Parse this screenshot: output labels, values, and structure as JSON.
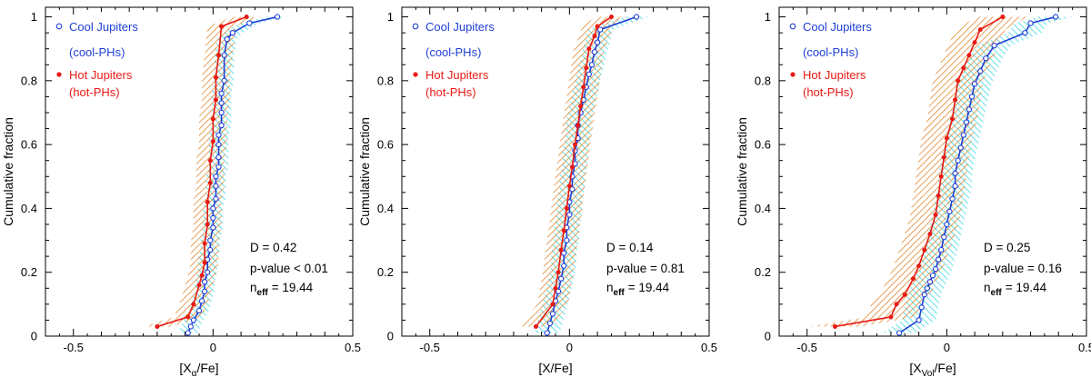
{
  "chart_data": [
    {
      "type": "line",
      "xlabel": "[X_α/Fe]",
      "xlabel_main": "[X",
      "xlabel_sub": "α",
      "xlabel_tail": "/Fe]",
      "ylabel": "Cumulative fraction",
      "xlim": [
        -0.6,
        0.5
      ],
      "ylim": [
        0,
        1.03
      ],
      "xticks": [
        -0.5,
        0,
        0.5
      ],
      "xtick_labels": [
        "-0.5",
        "0",
        "0.5"
      ],
      "yticks": [
        0,
        0.2,
        0.4,
        0.6,
        0.8,
        1
      ],
      "ytick_labels": [
        "0",
        "0.2",
        "0.4",
        "0.6",
        "0.8",
        "1"
      ],
      "legend": [
        "Cool Jupiters",
        "(cool-PHs)",
        "Hot Jupiters",
        "(hot-PHs)"
      ],
      "stats": {
        "d": "D = 0.42",
        "p": "p-value < 0.01",
        "neff_prefix": "n",
        "neff_sub": "eff",
        "neff_value": "= 19.44"
      },
      "series": [
        {
          "name": "Cool Jupiters (cool-PHs)",
          "color": "#1f3fd6",
          "band_color": "#2ad4e0",
          "marker": "open-circle",
          "band_width": 0.035,
          "x": [
            -0.09,
            -0.08,
            -0.07,
            -0.05,
            -0.04,
            -0.03,
            -0.03,
            -0.02,
            -0.02,
            -0.01,
            -0.01,
            0.0,
            0.0,
            0.0,
            0.01,
            0.01,
            0.01,
            0.02,
            0.02,
            0.02,
            0.02,
            0.03,
            0.03,
            0.03,
            0.03,
            0.04,
            0.04,
            0.05,
            0.07,
            0.13,
            0.23
          ],
          "y": [
            0.01,
            0.03,
            0.05,
            0.08,
            0.11,
            0.14,
            0.17,
            0.2,
            0.24,
            0.27,
            0.3,
            0.34,
            0.37,
            0.4,
            0.43,
            0.47,
            0.5,
            0.53,
            0.56,
            0.6,
            0.63,
            0.66,
            0.7,
            0.73,
            0.76,
            0.8,
            0.88,
            0.93,
            0.95,
            0.98,
            1.0
          ]
        },
        {
          "name": "Hot Jupiters (hot-PHs)",
          "color": "#e81a14",
          "band_color": "#e07a1a",
          "marker": "filled-circle",
          "band_width": 0.05,
          "x": [
            -0.2,
            -0.09,
            -0.07,
            -0.05,
            -0.04,
            -0.03,
            -0.03,
            -0.02,
            -0.02,
            -0.01,
            -0.01,
            0.0,
            0.0,
            0.01,
            0.01,
            0.02,
            0.03,
            0.12
          ],
          "y": [
            0.03,
            0.06,
            0.1,
            0.16,
            0.19,
            0.23,
            0.29,
            0.35,
            0.42,
            0.48,
            0.55,
            0.61,
            0.68,
            0.74,
            0.81,
            0.88,
            0.97,
            1.0
          ]
        }
      ]
    },
    {
      "type": "line",
      "xlabel": "[X/Fe]",
      "xlabel_main": "[X/Fe]",
      "xlabel_sub": "",
      "xlabel_tail": "",
      "ylabel": "Cumulative fraction",
      "xlim": [
        -0.6,
        0.5
      ],
      "ylim": [
        0,
        1.03
      ],
      "xticks": [
        -0.5,
        0,
        0.5
      ],
      "xtick_labels": [
        "-0.5",
        "0",
        "0.5"
      ],
      "yticks": [
        0,
        0.2,
        0.4,
        0.6,
        0.8,
        1
      ],
      "ytick_labels": [
        "0",
        "0.2",
        "0.4",
        "0.6",
        "0.8",
        "1"
      ],
      "legend": [
        "Cool Jupiters",
        "(cool-PHs)",
        "Hot Jupiters",
        "(hot-PHs)"
      ],
      "stats": {
        "d": "D = 0.14",
        "p": "p-value = 0.81",
        "neff_prefix": "n",
        "neff_sub": "eff",
        "neff_value": "= 19.44"
      },
      "series": [
        {
          "name": "Cool Jupiters (cool-PHs)",
          "color": "#1f3fd6",
          "band_color": "#2ad4e0",
          "marker": "open-circle",
          "band_width": 0.045,
          "x": [
            -0.08,
            -0.07,
            -0.06,
            -0.05,
            -0.04,
            -0.03,
            -0.02,
            -0.02,
            -0.01,
            -0.01,
            0.0,
            0.0,
            0.01,
            0.01,
            0.02,
            0.02,
            0.03,
            0.03,
            0.04,
            0.05,
            0.06,
            0.07,
            0.08,
            0.09,
            0.1,
            0.11,
            0.24
          ],
          "y": [
            0.01,
            0.04,
            0.07,
            0.11,
            0.14,
            0.18,
            0.22,
            0.26,
            0.3,
            0.34,
            0.38,
            0.42,
            0.46,
            0.5,
            0.54,
            0.58,
            0.62,
            0.66,
            0.7,
            0.74,
            0.78,
            0.82,
            0.85,
            0.89,
            0.92,
            0.96,
            1.0
          ]
        },
        {
          "name": "Hot Jupiters (hot-PHs)",
          "color": "#e81a14",
          "band_color": "#e07a1a",
          "marker": "filled-circle",
          "band_width": 0.055,
          "x": [
            -0.12,
            -0.06,
            -0.05,
            -0.04,
            -0.03,
            -0.02,
            -0.01,
            0.0,
            0.01,
            0.02,
            0.03,
            0.04,
            0.05,
            0.06,
            0.07,
            0.09,
            0.1,
            0.15
          ],
          "y": [
            0.03,
            0.1,
            0.15,
            0.2,
            0.27,
            0.33,
            0.4,
            0.47,
            0.53,
            0.6,
            0.66,
            0.72,
            0.78,
            0.84,
            0.9,
            0.94,
            0.97,
            1.0
          ]
        }
      ]
    },
    {
      "type": "line",
      "xlabel": "[X_Vol/Fe]",
      "xlabel_main": "[X",
      "xlabel_sub": "Vol",
      "xlabel_tail": "/Fe]",
      "ylabel": "Cumulative fraction",
      "xlim": [
        -0.6,
        0.5
      ],
      "ylim": [
        0,
        1.03
      ],
      "xticks": [
        -0.5,
        0,
        0.5
      ],
      "xtick_labels": [
        "-0.5",
        "0",
        "0.5"
      ],
      "yticks": [
        0,
        0.2,
        0.4,
        0.6,
        0.8,
        1
      ],
      "ytick_labels": [
        "0",
        "0.2",
        "0.4",
        "0.6",
        "0.8",
        "1"
      ],
      "legend": [
        "Cool Jupiters",
        "(cool-PHs)",
        "Hot Jupiters",
        "(hot-PHs)"
      ],
      "stats": {
        "d": "D = 0.25",
        "p": "p-value = 0.16",
        "neff_prefix": "n",
        "neff_sub": "eff",
        "neff_value": "= 19.44"
      },
      "series": [
        {
          "name": "Cool Jupiters (cool-PHs)",
          "color": "#1f3fd6",
          "band_color": "#2ad4e0",
          "marker": "open-circle",
          "band_width": 0.06,
          "x": [
            -0.17,
            -0.1,
            -0.09,
            -0.08,
            -0.07,
            -0.06,
            -0.05,
            -0.04,
            -0.03,
            -0.02,
            -0.01,
            0.0,
            0.01,
            0.02,
            0.03,
            0.03,
            0.04,
            0.05,
            0.06,
            0.07,
            0.08,
            0.09,
            0.1,
            0.12,
            0.14,
            0.17,
            0.28,
            0.3,
            0.39
          ],
          "y": [
            0.01,
            0.05,
            0.09,
            0.13,
            0.15,
            0.17,
            0.19,
            0.21,
            0.24,
            0.27,
            0.31,
            0.35,
            0.39,
            0.43,
            0.47,
            0.51,
            0.55,
            0.59,
            0.63,
            0.67,
            0.71,
            0.75,
            0.79,
            0.83,
            0.87,
            0.91,
            0.95,
            0.98,
            1.0
          ]
        },
        {
          "name": "Hot Jupiters (hot-PHs)",
          "color": "#e81a14",
          "band_color": "#e07a1a",
          "marker": "filled-circle",
          "band_width": 0.09,
          "x": [
            -0.4,
            -0.2,
            -0.18,
            -0.15,
            -0.12,
            -0.1,
            -0.08,
            -0.06,
            -0.04,
            -0.03,
            -0.02,
            -0.01,
            0.0,
            0.02,
            0.03,
            0.04,
            0.06,
            0.08,
            0.1,
            0.12,
            0.2
          ],
          "y": [
            0.03,
            0.06,
            0.1,
            0.13,
            0.18,
            0.22,
            0.27,
            0.32,
            0.38,
            0.44,
            0.5,
            0.56,
            0.62,
            0.68,
            0.74,
            0.8,
            0.84,
            0.88,
            0.92,
            0.96,
            1.0
          ]
        }
      ]
    }
  ]
}
